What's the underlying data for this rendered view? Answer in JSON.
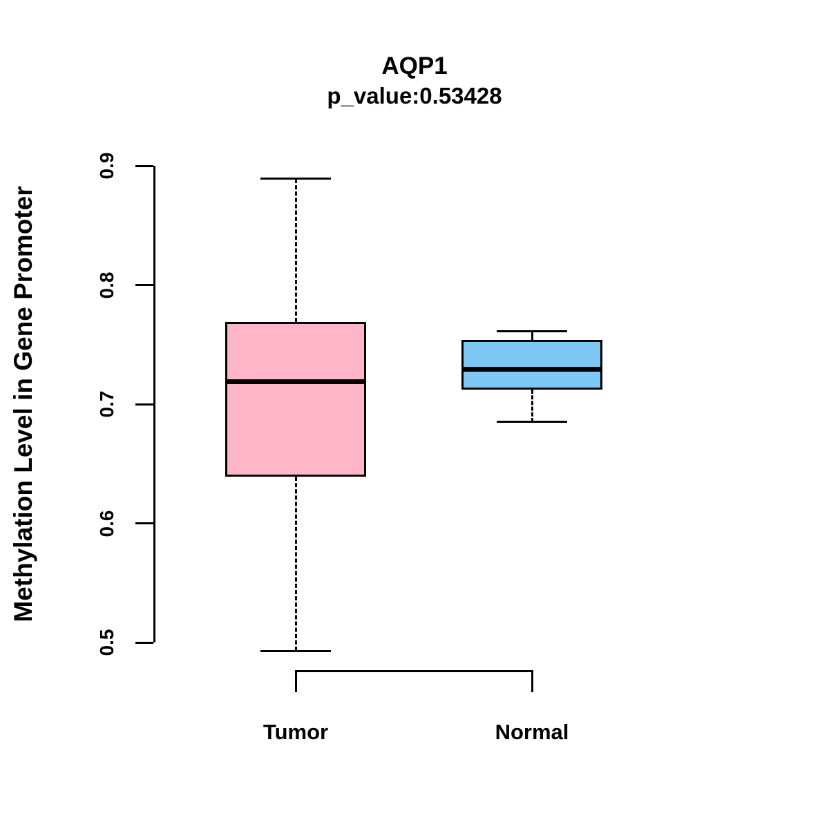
{
  "chart_data": {
    "type": "boxplot",
    "title": "AQP1",
    "subtitle": "p_value:0.53428",
    "ylabel": "Methylation Level in Gene Promoter",
    "xlabel": "",
    "categories": [
      "Tumor",
      "Normal"
    ],
    "series": [
      {
        "name": "Tumor",
        "color": "#FFB6C8",
        "min": 0.493,
        "q1": 0.639,
        "median": 0.719,
        "q3": 0.769,
        "max": 0.889
      },
      {
        "name": "Normal",
        "color": "#7EC8F5",
        "min": 0.685,
        "q1": 0.712,
        "median": 0.729,
        "q3": 0.754,
        "max": 0.761
      }
    ],
    "yticks": [
      0.5,
      0.6,
      0.7,
      0.8,
      0.9
    ],
    "ylim": [
      0.5,
      0.9
    ],
    "grid": false,
    "legend": null,
    "colors": {
      "tumor_box": "#FFB6C8",
      "normal_box": "#7EC8F5",
      "axis": "#000000",
      "background": "#FFFFFF"
    }
  }
}
